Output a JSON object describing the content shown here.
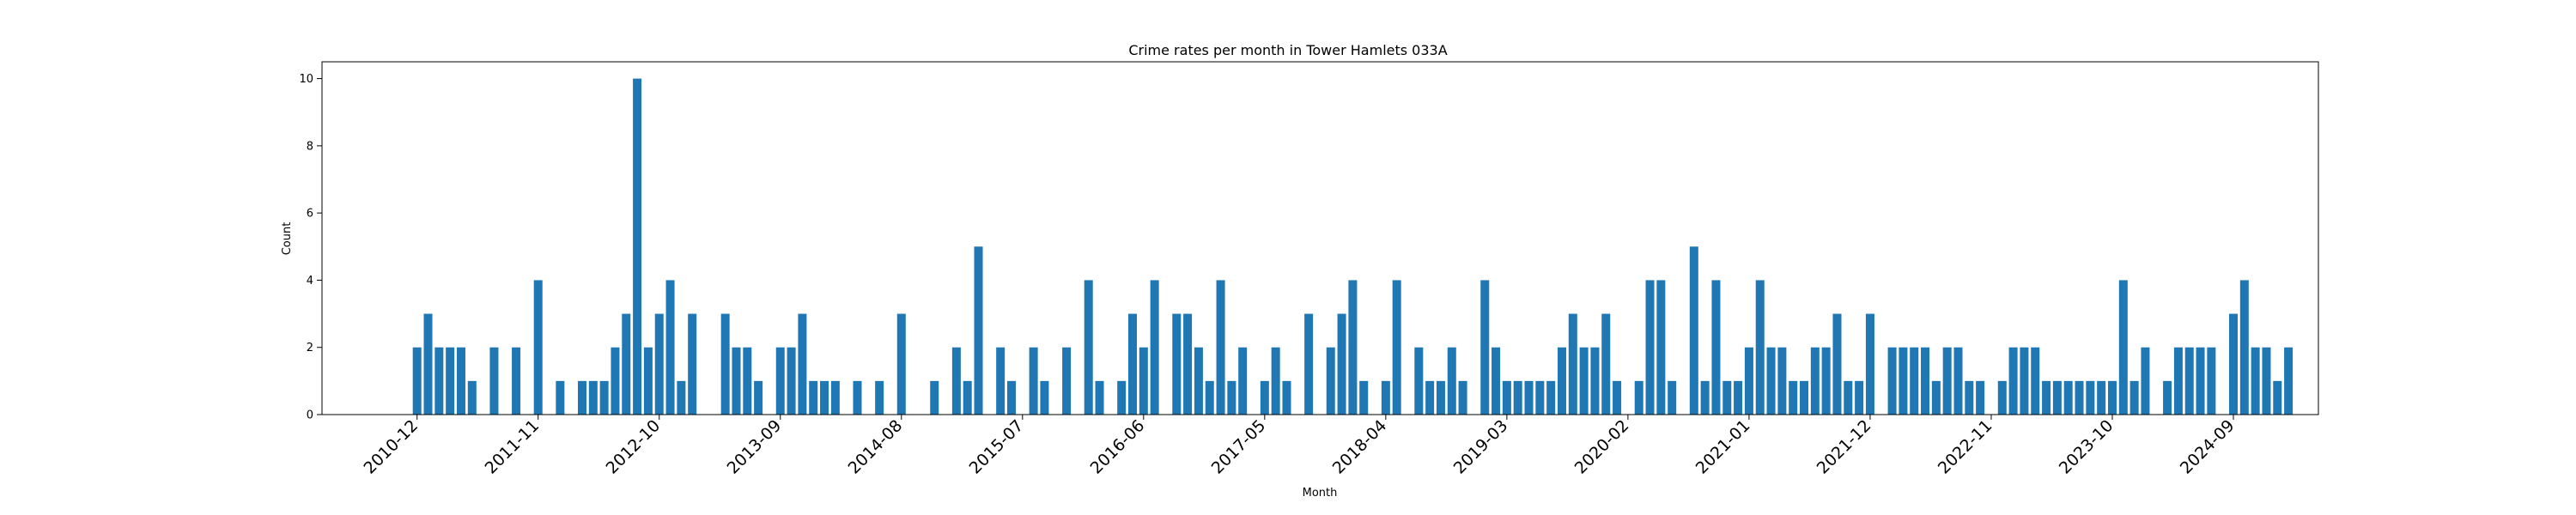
{
  "chart_data": {
    "type": "bar",
    "title": "Crime rates per month in Tower Hamlets 033A",
    "xlabel": "Month",
    "ylabel": "Count",
    "ylim": [
      0,
      10.5
    ],
    "yticks": [
      0,
      2,
      4,
      6,
      8,
      10
    ],
    "grid": false,
    "legend": "none",
    "bar_color": "#1f77b4",
    "first_month": "2010-12",
    "xticks": [
      "2010-12",
      "2011-11",
      "2012-10",
      "2013-09",
      "2014-08",
      "2015-07",
      "2016-06",
      "2017-05",
      "2018-04",
      "2019-03",
      "2020-02",
      "2021-01",
      "2021-12",
      "2022-11",
      "2023-10",
      "2024-09"
    ],
    "categories": [
      "2010-12",
      "2011-01",
      "2011-02",
      "2011-03",
      "2011-04",
      "2011-05",
      "2011-06",
      "2011-07",
      "2011-08",
      "2011-09",
      "2011-10",
      "2011-11",
      "2011-12",
      "2012-01",
      "2012-02",
      "2012-03",
      "2012-04",
      "2012-05",
      "2012-06",
      "2012-07",
      "2012-08",
      "2012-09",
      "2012-10",
      "2012-11",
      "2012-12",
      "2013-01",
      "2013-02",
      "2013-03",
      "2013-04",
      "2013-05",
      "2013-06",
      "2013-07",
      "2013-08",
      "2013-09",
      "2013-10",
      "2013-11",
      "2013-12",
      "2014-01",
      "2014-02",
      "2014-03",
      "2014-04",
      "2014-05",
      "2014-06",
      "2014-07",
      "2014-08",
      "2014-09",
      "2014-10",
      "2014-11",
      "2014-12",
      "2015-01",
      "2015-02",
      "2015-03",
      "2015-04",
      "2015-05",
      "2015-06",
      "2015-07",
      "2015-08",
      "2015-09",
      "2015-10",
      "2015-11",
      "2015-12",
      "2016-01",
      "2016-02",
      "2016-03",
      "2016-04",
      "2016-05",
      "2016-06",
      "2016-07",
      "2016-08",
      "2016-09",
      "2016-10",
      "2016-11",
      "2016-12",
      "2017-01",
      "2017-02",
      "2017-03",
      "2017-04",
      "2017-05",
      "2017-06",
      "2017-07",
      "2017-08",
      "2017-09",
      "2017-10",
      "2017-11",
      "2017-12",
      "2018-01",
      "2018-02",
      "2018-03",
      "2018-04",
      "2018-05",
      "2018-06",
      "2018-07",
      "2018-08",
      "2018-09",
      "2018-10",
      "2018-11",
      "2018-12",
      "2019-01",
      "2019-02",
      "2019-03",
      "2019-04",
      "2019-05",
      "2019-06",
      "2019-07",
      "2019-08",
      "2019-09",
      "2019-10",
      "2019-11",
      "2019-12",
      "2020-01",
      "2020-02",
      "2020-03",
      "2020-04",
      "2020-05",
      "2020-06",
      "2020-07",
      "2020-08",
      "2020-09",
      "2020-10",
      "2020-11",
      "2020-12",
      "2021-01",
      "2021-02",
      "2021-03",
      "2021-04",
      "2021-05",
      "2021-06",
      "2021-07",
      "2021-08",
      "2021-09",
      "2021-10",
      "2021-11",
      "2021-12",
      "2022-01",
      "2022-02",
      "2022-03",
      "2022-04",
      "2022-05",
      "2022-06",
      "2022-07",
      "2022-08",
      "2022-09",
      "2022-10",
      "2022-11",
      "2022-12",
      "2023-01",
      "2023-02",
      "2023-03",
      "2023-04",
      "2023-05",
      "2023-06",
      "2023-07",
      "2023-08",
      "2023-09",
      "2023-10",
      "2023-11",
      "2023-12",
      "2024-01",
      "2024-02",
      "2024-03",
      "2024-04",
      "2024-05",
      "2024-06",
      "2024-07",
      "2024-08",
      "2024-09",
      "2024-10",
      "2024-11",
      "2024-12",
      "2025-01",
      "2025-02"
    ],
    "values": [
      2,
      3,
      2,
      2,
      2,
      1,
      0,
      2,
      0,
      2,
      0,
      4,
      0,
      1,
      0,
      1,
      1,
      1,
      2,
      3,
      10,
      2,
      3,
      4,
      1,
      3,
      0,
      0,
      3,
      2,
      2,
      1,
      0,
      2,
      2,
      3,
      1,
      1,
      1,
      0,
      1,
      0,
      1,
      0,
      3,
      0,
      0,
      1,
      0,
      2,
      1,
      5,
      0,
      2,
      1,
      0,
      2,
      1,
      0,
      2,
      0,
      4,
      1,
      0,
      1,
      3,
      2,
      4,
      0,
      3,
      3,
      2,
      1,
      4,
      1,
      2,
      0,
      1,
      2,
      1,
      0,
      3,
      0,
      2,
      3,
      4,
      1,
      0,
      1,
      4,
      0,
      2,
      1,
      1,
      2,
      1,
      0,
      4,
      2,
      1,
      1,
      1,
      1,
      1,
      2,
      3,
      2,
      2,
      3,
      1,
      0,
      1,
      4,
      4,
      1,
      0,
      5,
      1,
      4,
      1,
      1,
      2,
      4,
      2,
      2,
      1,
      1,
      2,
      2,
      3,
      1,
      1,
      3,
      0,
      2,
      2,
      2,
      2,
      1,
      2,
      2,
      1,
      1,
      0,
      1,
      2,
      2,
      2,
      1,
      1,
      1,
      1,
      1,
      1,
      1,
      4,
      1,
      2,
      0,
      1,
      2,
      2,
      2,
      2,
      0,
      3,
      4,
      2,
      2,
      1,
      2
    ]
  }
}
